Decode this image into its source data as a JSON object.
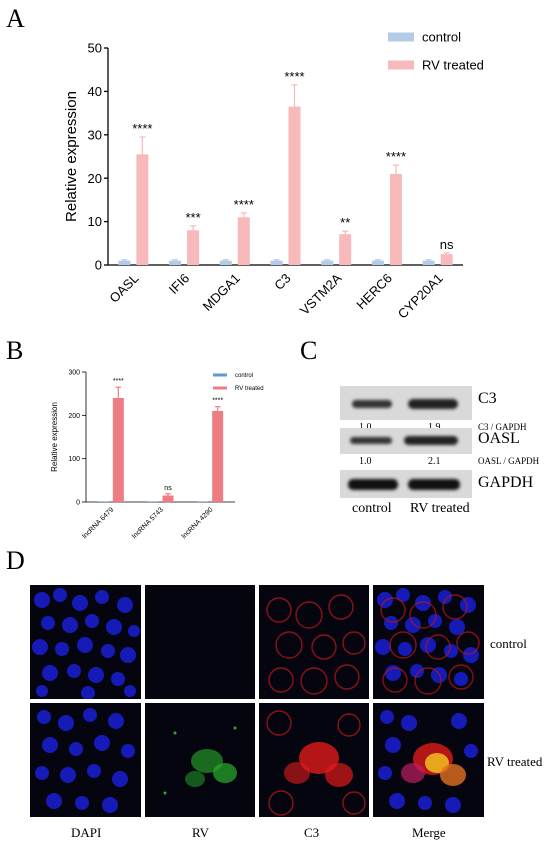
{
  "panels": {
    "a": "A",
    "b": "B",
    "c": "C",
    "d": "D"
  },
  "colors": {
    "control": "#b4cbe8",
    "treated": "#f7b9b9",
    "control_b": "#5b9bd5",
    "treated_b": "#ee7c83"
  },
  "chart_data": [
    {
      "type": "bar",
      "categories": [
        "OASL",
        "IFI6",
        "MDGA1",
        "C3",
        "VSTM2A",
        "HERC6",
        "CYP20A1"
      ],
      "series": [
        {
          "name": "control",
          "values": [
            1,
            1,
            1,
            1,
            1,
            1,
            1
          ],
          "errors": [
            0.2,
            0.2,
            0.2,
            0.2,
            0.2,
            0.2,
            0.2
          ]
        },
        {
          "name": "RV treated",
          "values": [
            25.5,
            8,
            11,
            36.5,
            7.1,
            21,
            2.5
          ],
          "errors": [
            4,
            1,
            1,
            5,
            0.7,
            2,
            0.3
          ]
        }
      ],
      "significance": [
        "****",
        "***",
        "****",
        "****",
        "**",
        "****",
        "ns"
      ],
      "ylabel": "Relative expression",
      "ylim": [
        0,
        50
      ],
      "yticks": [
        0,
        10,
        20,
        30,
        40,
        50
      ],
      "legend": "top-right"
    },
    {
      "type": "bar",
      "categories": [
        "lncRNA 6479",
        "lncRNA 5743",
        "lncRNA 4290"
      ],
      "series": [
        {
          "name": "control",
          "values": [
            1,
            1,
            1
          ],
          "errors": [
            0,
            0,
            0
          ]
        },
        {
          "name": "RV treated",
          "values": [
            240,
            15,
            210
          ],
          "errors": [
            25,
            4,
            10
          ]
        }
      ],
      "significance": [
        "****",
        "ns",
        "****"
      ],
      "ylabel": "Relative expression",
      "ylim": [
        0,
        300
      ],
      "yticks": [
        0,
        100,
        200,
        300
      ],
      "legend": "top-right"
    }
  ],
  "western": {
    "rows": [
      {
        "label": "C3",
        "ratio_label": "C3 / GAPDH",
        "ratios": [
          "1.0",
          "1.9"
        ]
      },
      {
        "label": "OASL",
        "ratio_label": "OASL / GAPDH",
        "ratios": [
          "1.0",
          "2.1"
        ]
      },
      {
        "label": "GAPDH",
        "ratio_label": "",
        "ratios": []
      }
    ],
    "lanes": [
      "control",
      "RV treated"
    ]
  },
  "micrograph": {
    "columns": [
      "DAPI",
      "RV",
      "C3",
      "Merge"
    ],
    "rows": [
      "control",
      "RV treated"
    ]
  }
}
